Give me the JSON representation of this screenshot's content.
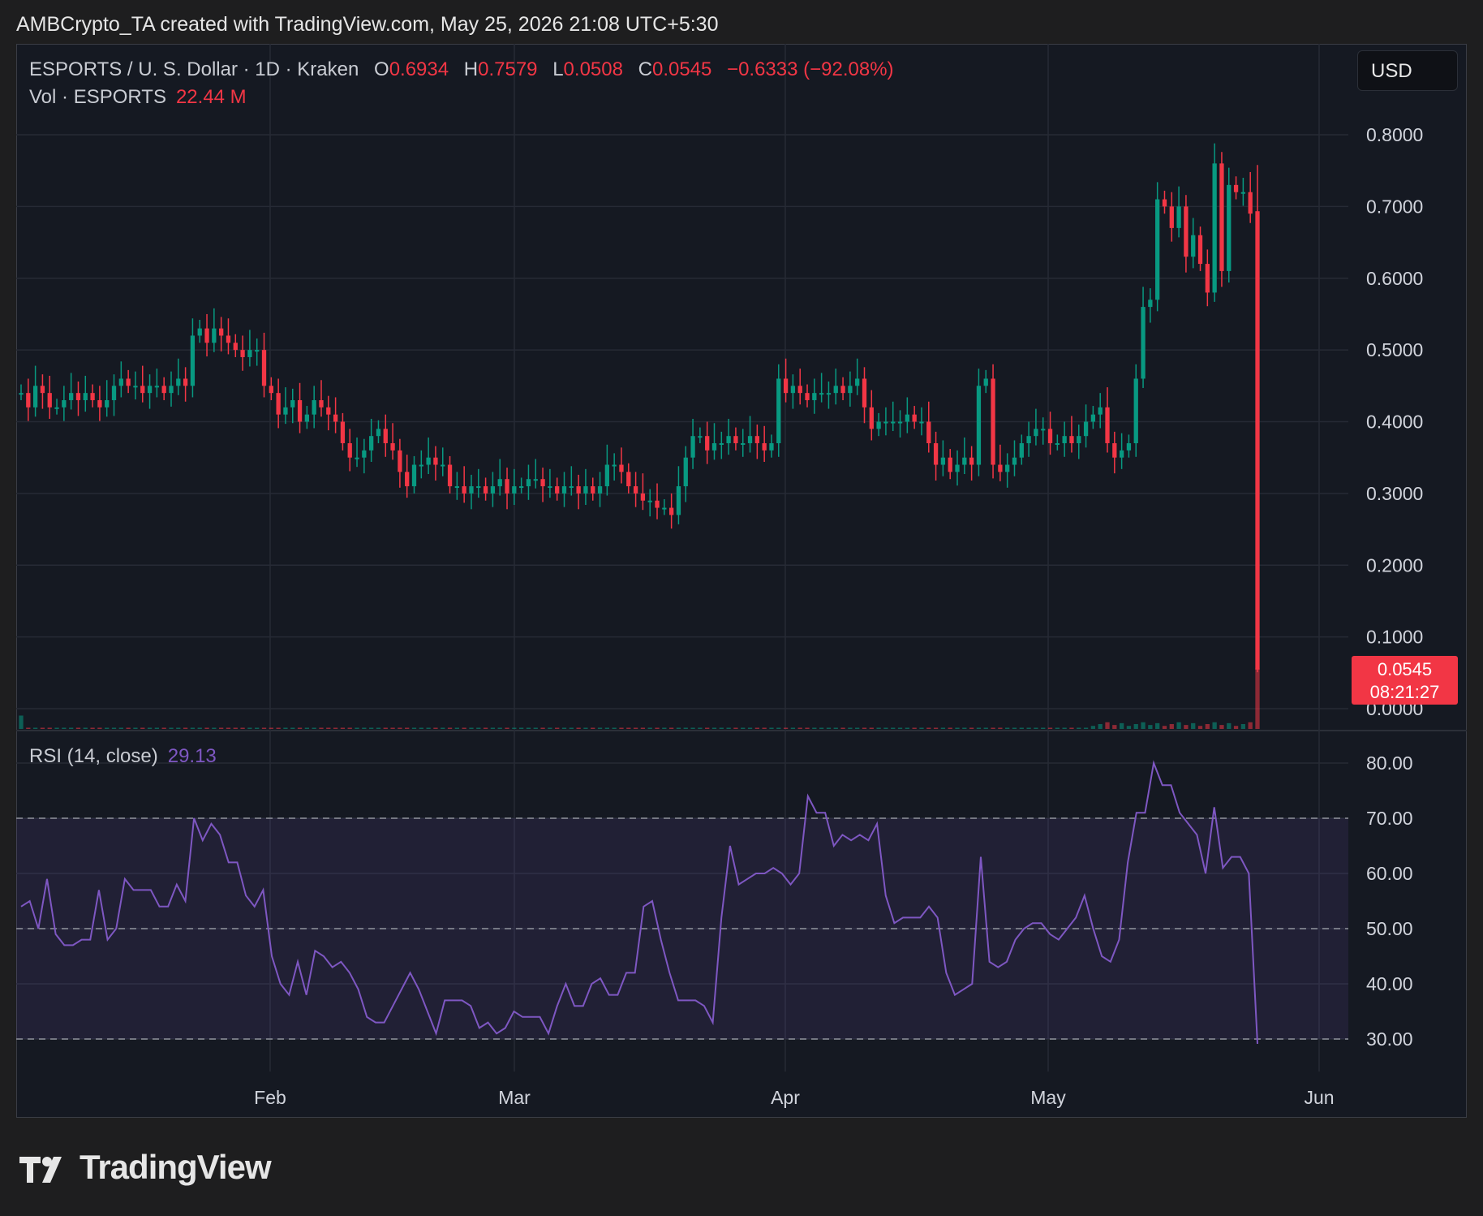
{
  "header": {
    "caption": "AMBCrypto_TA created with TradingView.com, May 25, 2026 21:08 UTC+5:30"
  },
  "toolbar": {
    "currency": "USD"
  },
  "legend": {
    "symbol": "ESPORTS / U. S. Dollar · 1D · Kraken",
    "o_label": "O",
    "o": "0.6934",
    "h_label": "H",
    "h": "0.7579",
    "l_label": "L",
    "l": "0.0508",
    "c_label": "C",
    "c": "0.0545",
    "change": "−0.6333 (−92.08%)",
    "vol_label": "Vol · ESPORTS",
    "vol_value": "22.44 M",
    "rsi_label": "RSI (14, close)",
    "rsi_value": "29.13"
  },
  "price_tag": {
    "price": "0.0545",
    "countdown": "08:21:27"
  },
  "brand": {
    "name": "TradingView"
  },
  "colors": {
    "up": "#089981",
    "down": "#f23645",
    "rsi": "#7e57c2",
    "grid": "#262a35",
    "background": "#151922"
  },
  "chart_data": [
    {
      "type": "candlestick",
      "title": "ESPORTS / U. S. Dollar · 1D · Kraken",
      "yaxis_ticks": [
        "0.8000",
        "0.7000",
        "0.6000",
        "0.5000",
        "0.4000",
        "0.3000",
        "0.2000",
        "0.1000",
        "0.0000"
      ],
      "xaxis_ticks": [
        "Feb",
        "Mar",
        "Apr",
        "May",
        "Jun"
      ],
      "ylim": [
        0.0,
        0.8
      ],
      "grid": true,
      "closes": [
        0.44,
        0.42,
        0.45,
        0.44,
        0.42,
        0.42,
        0.43,
        0.44,
        0.43,
        0.44,
        0.43,
        0.42,
        0.43,
        0.45,
        0.46,
        0.45,
        0.45,
        0.44,
        0.45,
        0.45,
        0.44,
        0.45,
        0.46,
        0.45,
        0.52,
        0.53,
        0.51,
        0.53,
        0.52,
        0.51,
        0.5,
        0.49,
        0.5,
        0.5,
        0.45,
        0.44,
        0.41,
        0.42,
        0.43,
        0.4,
        0.41,
        0.43,
        0.42,
        0.41,
        0.4,
        0.37,
        0.35,
        0.35,
        0.36,
        0.38,
        0.39,
        0.37,
        0.36,
        0.33,
        0.31,
        0.34,
        0.34,
        0.35,
        0.34,
        0.34,
        0.31,
        0.31,
        0.3,
        0.31,
        0.31,
        0.3,
        0.31,
        0.32,
        0.3,
        0.31,
        0.31,
        0.32,
        0.32,
        0.31,
        0.31,
        0.3,
        0.31,
        0.31,
        0.3,
        0.31,
        0.3,
        0.31,
        0.34,
        0.34,
        0.33,
        0.31,
        0.3,
        0.29,
        0.29,
        0.28,
        0.28,
        0.27,
        0.31,
        0.35,
        0.38,
        0.38,
        0.36,
        0.37,
        0.37,
        0.38,
        0.37,
        0.37,
        0.38,
        0.37,
        0.36,
        0.37,
        0.46,
        0.44,
        0.45,
        0.44,
        0.43,
        0.44,
        0.44,
        0.44,
        0.45,
        0.44,
        0.45,
        0.46,
        0.42,
        0.39,
        0.4,
        0.4,
        0.4,
        0.4,
        0.41,
        0.4,
        0.4,
        0.37,
        0.34,
        0.35,
        0.33,
        0.34,
        0.35,
        0.34,
        0.45,
        0.46,
        0.34,
        0.33,
        0.34,
        0.35,
        0.37,
        0.38,
        0.39,
        0.39,
        0.37,
        0.37,
        0.38,
        0.37,
        0.38,
        0.4,
        0.41,
        0.42,
        0.37,
        0.35,
        0.36,
        0.37,
        0.46,
        0.56,
        0.57,
        0.71,
        0.7,
        0.67,
        0.7,
        0.63,
        0.66,
        0.62,
        0.58,
        0.76,
        0.61,
        0.73,
        0.72,
        0.72,
        0.69,
        0.0545
      ],
      "volume_last": "22.44 M"
    },
    {
      "type": "line",
      "title": "RSI (14, close)",
      "yaxis_ticks": [
        "80.00",
        "70.00",
        "60.00",
        "50.00",
        "40.00",
        "30.00"
      ],
      "ylim": [
        30,
        80
      ],
      "levels": [
        70,
        50,
        30
      ],
      "values": [
        54,
        55,
        50,
        59,
        49,
        47,
        47,
        48,
        48,
        57,
        48,
        50,
        59,
        57,
        57,
        57,
        54,
        54,
        58,
        55,
        70,
        66,
        69,
        67,
        62,
        62,
        56,
        54,
        57,
        45,
        40,
        38,
        44,
        38,
        46,
        45,
        43,
        44,
        42,
        39,
        34,
        33,
        33,
        36,
        39,
        42,
        39,
        35,
        31,
        37,
        37,
        37,
        36,
        32,
        33,
        31,
        32,
        35,
        34,
        34,
        34,
        31,
        36,
        40,
        36,
        36,
        40,
        41,
        38,
        38,
        42,
        42,
        54,
        55,
        48,
        42,
        37,
        37,
        37,
        36,
        33,
        52,
        65,
        58,
        59,
        60,
        60,
        61,
        60,
        58,
        60,
        74,
        71,
        71,
        65,
        67,
        66,
        67,
        66,
        69,
        56,
        51,
        52,
        52,
        52,
        54,
        52,
        42,
        38,
        39,
        40,
        63,
        44,
        43,
        44,
        48,
        50,
        51,
        51,
        49,
        48,
        50,
        52,
        56,
        50,
        45,
        44,
        48,
        62,
        71,
        71,
        80,
        76,
        76,
        71,
        69,
        67,
        60,
        72,
        61,
        63,
        63,
        60,
        29.13
      ]
    }
  ]
}
